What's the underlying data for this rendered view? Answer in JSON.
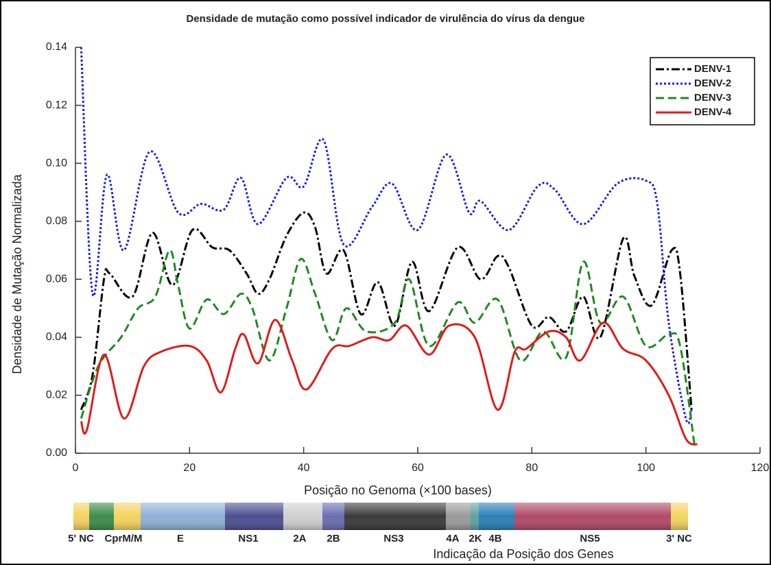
{
  "chart_data": {
    "type": "line",
    "title": "Densidade de mutação como possível indicador de virulência do vírus da dengue",
    "x_label": "Posição no Genoma (×100 bases)",
    "y_label": "Densidade de Mutação Normalizada",
    "xlim": [
      0,
      120
    ],
    "xticks": [
      0,
      20,
      40,
      60,
      80,
      100,
      120
    ],
    "ylim": [
      0,
      0.14
    ],
    "yticks": [
      {
        "value": 0,
        "label": "0.00"
      },
      {
        "value": 0.02,
        "label": "0.02"
      },
      {
        "value": 0.04,
        "label": "0.04"
      },
      {
        "value": 0.06,
        "label": "0.06"
      },
      {
        "value": 0.08,
        "label": "0.08"
      },
      {
        "value": 0.1,
        "label": "0.10"
      },
      {
        "value": 0.12,
        "label": "0.12"
      },
      {
        "value": 0.14,
        "label": "0.14"
      }
    ],
    "legend": "upper right",
    "series": [
      {
        "name": "DENV-1",
        "color": "#000000",
        "dash": "12 4 3 4",
        "x": [
          1,
          3,
          5,
          6,
          10,
          13.5,
          17,
          20.5,
          24,
          27,
          30,
          32,
          34,
          37,
          40,
          42,
          44,
          47,
          50,
          53,
          56,
          59,
          62,
          67,
          71,
          74,
          76,
          80,
          83,
          86,
          89,
          92,
          96,
          98,
          101,
          104.5,
          106,
          108
        ],
        "values": [
          0.015,
          0.027,
          0.06,
          0.062,
          0.054,
          0.076,
          0.058,
          0.077,
          0.071,
          0.07,
          0.062,
          0.055,
          0.06,
          0.075,
          0.083,
          0.078,
          0.062,
          0.07,
          0.048,
          0.059,
          0.044,
          0.066,
          0.049,
          0.071,
          0.06,
          0.068,
          0.064,
          0.044,
          0.047,
          0.042,
          0.054,
          0.04,
          0.074,
          0.061,
          0.051,
          0.07,
          0.062,
          0.015
        ]
      },
      {
        "name": "DENV-2",
        "color": "#1a1aee",
        "dash": "3 3",
        "x": [
          1,
          3,
          5.5,
          8.5,
          13,
          18,
          22,
          26,
          29,
          32,
          37,
          40,
          43.5,
          47,
          52,
          55.5,
          60,
          65,
          69,
          71,
          76,
          81,
          84,
          89,
          95,
          100,
          102,
          104,
          107,
          108
        ],
        "values": [
          0.14,
          0.055,
          0.096,
          0.07,
          0.104,
          0.083,
          0.086,
          0.084,
          0.095,
          0.079,
          0.095,
          0.092,
          0.108,
          0.072,
          0.085,
          0.093,
          0.077,
          0.103,
          0.083,
          0.087,
          0.077,
          0.092,
          0.091,
          0.079,
          0.093,
          0.094,
          0.086,
          0.045,
          0.012,
          0.015
        ]
      },
      {
        "name": "DENV-3",
        "color": "#1f8a1f",
        "dash": "12 6",
        "x": [
          1,
          4,
          8,
          11,
          14,
          16.5,
          18,
          20,
          23,
          26,
          29,
          31,
          34,
          37,
          39.5,
          42,
          45,
          47.5,
          51,
          56,
          58.5,
          62,
          67,
          70,
          74,
          78,
          82,
          86,
          89,
          92,
          96,
          100,
          104,
          106,
          108.5
        ],
        "values": [
          0.012,
          0.03,
          0.04,
          0.05,
          0.054,
          0.07,
          0.058,
          0.043,
          0.053,
          0.048,
          0.055,
          0.05,
          0.032,
          0.05,
          0.067,
          0.055,
          0.039,
          0.05,
          0.042,
          0.045,
          0.06,
          0.037,
          0.052,
          0.045,
          0.053,
          0.032,
          0.042,
          0.033,
          0.066,
          0.045,
          0.054,
          0.037,
          0.041,
          0.037,
          0.003
        ]
      },
      {
        "name": "DENV-4",
        "color": "#e01b1b",
        "dash": "",
        "x": [
          1,
          2,
          5,
          8.5,
          12,
          15,
          20,
          23,
          25.5,
          28,
          29.5,
          32,
          35,
          38,
          40.5,
          45,
          48,
          52,
          55,
          58,
          62,
          65.5,
          70,
          74,
          77,
          79,
          83,
          86,
          88.5,
          92.5,
          96,
          100,
          104,
          107,
          109
        ],
        "values": [
          0.011,
          0.008,
          0.034,
          0.012,
          0.03,
          0.035,
          0.037,
          0.032,
          0.021,
          0.036,
          0.041,
          0.031,
          0.046,
          0.032,
          0.022,
          0.036,
          0.037,
          0.04,
          0.039,
          0.044,
          0.034,
          0.044,
          0.04,
          0.015,
          0.035,
          0.036,
          0.042,
          0.04,
          0.032,
          0.045,
          0.036,
          0.032,
          0.02,
          0.005,
          0.003
        ]
      }
    ]
  },
  "gene_map": {
    "title": "Indicação da Posição dos Genes",
    "labels": [
      "5' NC",
      "CprM/M",
      "E",
      "NS1",
      "2A",
      "2B",
      "NS3",
      "4A",
      "2K",
      "4B",
      "NS5",
      "3' NC"
    ]
  }
}
